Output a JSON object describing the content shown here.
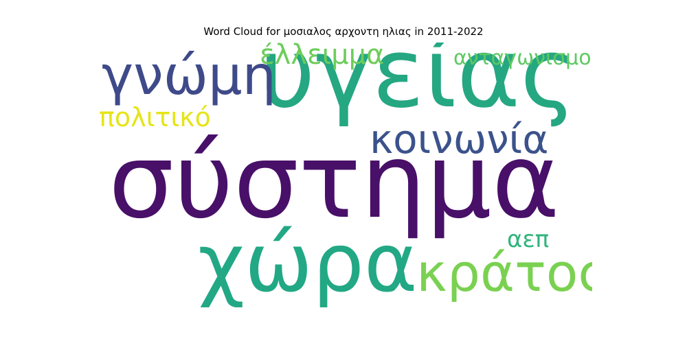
{
  "chart_data": {
    "type": "wordcloud",
    "title": "Word Cloud for μοσιαλος αρχοντη ηλιας in 2011-2022",
    "words": [
      {
        "text": "σύστημα",
        "color": "#481068"
      },
      {
        "text": "υγείας",
        "color": "#25a782"
      },
      {
        "text": "χώρα",
        "color": "#22a884"
      },
      {
        "text": "κράτος",
        "color": "#7ad151"
      },
      {
        "text": "γνώμη",
        "color": "#3e4a89"
      },
      {
        "text": "κοινωνία",
        "color": "#3b528b"
      },
      {
        "text": "έλλειμμα",
        "color": "#6ccd5a"
      },
      {
        "text": "ανταγωνισμού",
        "color": "#5ec962"
      },
      {
        "text": "πολιτικό",
        "color": "#e5e419"
      },
      {
        "text": "αεπ",
        "color": "#2fb47c"
      }
    ]
  }
}
